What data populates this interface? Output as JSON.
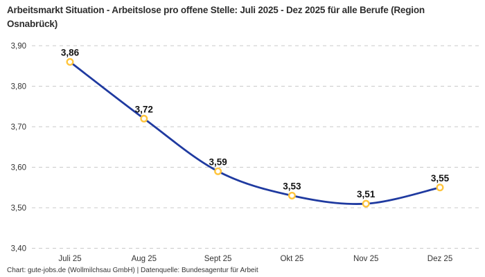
{
  "title": "Arbeitsmarkt Situation - Arbeitslose pro offene Stelle: Juli 2025 - Dez 2025 für alle Berufe (Region Osnabrück)",
  "footer": "Chart: gute-jobs.de (Wollmilchsau GmbH) | Datenquelle: Bundesagentur für Arbeit",
  "chart_data": {
    "type": "line",
    "title": "Arbeitsmarkt Situation - Arbeitslose pro offene Stelle: Juli 2025 - Dez 2025 für alle Berufe (Region Osnabrück)",
    "categories": [
      "Juli 25",
      "Aug 25",
      "Sept 25",
      "Okt 25",
      "Nov 25",
      "Dez 25"
    ],
    "values": [
      3.86,
      3.72,
      3.59,
      3.53,
      3.51,
      3.55
    ],
    "point_labels": [
      "3,86",
      "3,72",
      "3,59",
      "3,53",
      "3,51",
      "3,55"
    ],
    "xlabel": "",
    "ylabel": "",
    "ylim": [
      3.4,
      3.9
    ],
    "ytick_labels": [
      "3,90",
      "3,80",
      "3,70",
      "3,60",
      "3,50",
      "3,40"
    ],
    "ytick_values": [
      3.9,
      3.8,
      3.7,
      3.6,
      3.5,
      3.4
    ],
    "grid": "horizontal-dashed",
    "legend": "none",
    "line_color": "#1F3AA0",
    "marker_ring_color": "#FFC53D",
    "marker_fill_color": "#FFFFFF",
    "grid_color": "#C9C9C9",
    "smooth": true
  }
}
